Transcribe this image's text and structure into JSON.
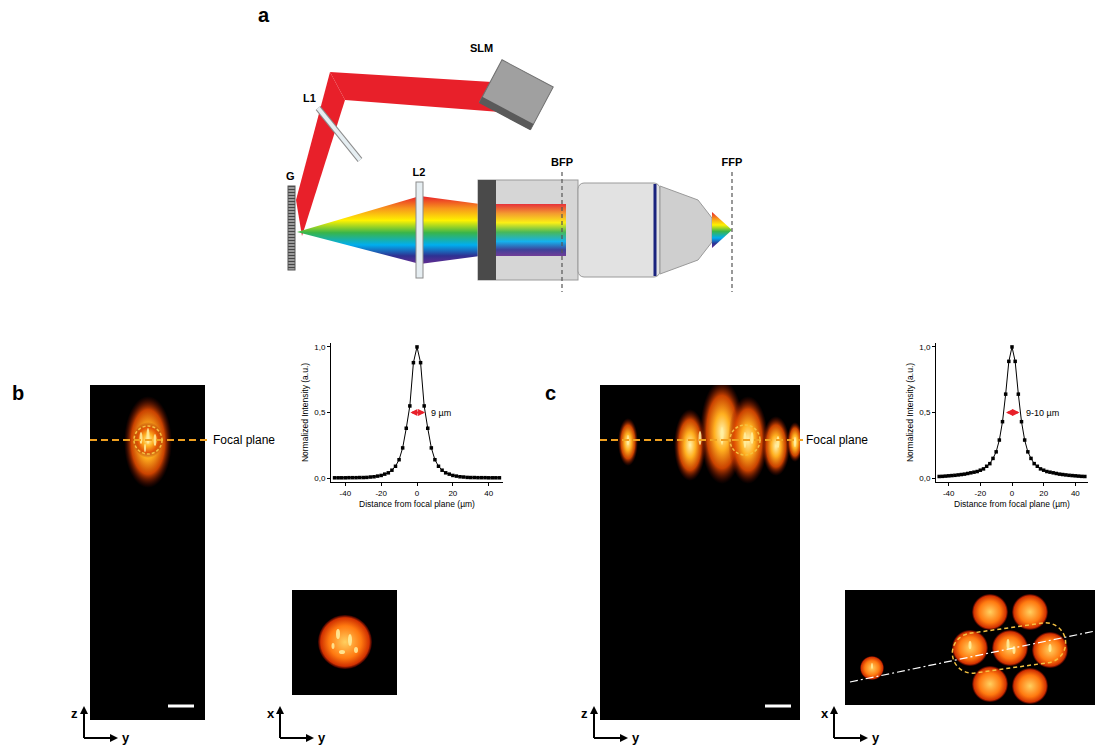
{
  "panels": {
    "a": {
      "label": "a",
      "components": [
        "SLM",
        "L1",
        "G",
        "L2",
        "BFP",
        "FFP"
      ]
    },
    "b": {
      "label": "b",
      "focal_plane_label": "Focal plane",
      "zy_axes": [
        "z",
        "y"
      ],
      "xy_axes": [
        "x",
        "y"
      ]
    },
    "c": {
      "label": "c",
      "focal_plane_label": "Focal plane",
      "zy_axes": [
        "z",
        "y"
      ],
      "xy_axes": [
        "x",
        "y"
      ]
    }
  },
  "chart_data": [
    {
      "type": "line",
      "x_label": "Distance from focal plane (µm)",
      "y_label": "Normalized Intensity (a.u.)",
      "x": [
        -46,
        -44,
        -42,
        -40,
        -38,
        -36,
        -34,
        -32,
        -30,
        -28,
        -26,
        -24,
        -22,
        -20,
        -18,
        -16,
        -14,
        -12,
        -10,
        -8,
        -6,
        -4,
        -2,
        0,
        2,
        4,
        6,
        8,
        10,
        12,
        14,
        16,
        18,
        20,
        22,
        24,
        26,
        28,
        30,
        32,
        34,
        36,
        38,
        40,
        42,
        44,
        46
      ],
      "series": [
        {
          "color": "#000000",
          "marker": "square",
          "line_style": "solid",
          "values": [
            0.002,
            0.002,
            0.002,
            0.002,
            0.003,
            0.003,
            0.003,
            0.004,
            0.004,
            0.005,
            0.008,
            0.01,
            0.015,
            0.02,
            0.03,
            0.04,
            0.06,
            0.09,
            0.14,
            0.23,
            0.38,
            0.55,
            0.88,
            1.0,
            0.88,
            0.55,
            0.38,
            0.23,
            0.14,
            0.09,
            0.06,
            0.04,
            0.03,
            0.02,
            0.015,
            0.01,
            0.008,
            0.005,
            0.004,
            0.004,
            0.003,
            0.003,
            0.003,
            0.002,
            0.002,
            0.002,
            0.002
          ]
        }
      ],
      "xlim": [
        -48,
        48
      ],
      "xticks": [
        -40,
        -20,
        0,
        20,
        40
      ],
      "ylim": [
        -0.03,
        1.03
      ],
      "yticks": [
        {
          "value": 0,
          "label": "0,0"
        },
        {
          "value": 0.5,
          "label": "0,5"
        },
        {
          "value": 1,
          "label": "1,0"
        }
      ],
      "grid": false,
      "annotations": [
        {
          "text": "9 µm",
          "from": -4.5,
          "to": 4.5,
          "y": 0.5,
          "color": "#e8202a"
        }
      ]
    },
    {
      "type": "line",
      "x_label": "Distance from focal plane (µm)",
      "y_label": "Normalized Intensity (a.u.)",
      "x": [
        -46,
        -44,
        -42,
        -40,
        -38,
        -36,
        -34,
        -32,
        -30,
        -28,
        -26,
        -24,
        -22,
        -20,
        -18,
        -16,
        -14,
        -12,
        -10,
        -8,
        -6,
        -4,
        -2,
        0,
        2,
        4,
        6,
        8,
        10,
        12,
        14,
        16,
        18,
        20,
        22,
        24,
        26,
        28,
        30,
        32,
        34,
        36,
        38,
        40,
        42,
        44,
        46
      ],
      "series": [
        {
          "color": "#000000",
          "marker": "square",
          "line_style": "solid",
          "values": [
            0.012,
            0.013,
            0.015,
            0.017,
            0.019,
            0.021,
            0.024,
            0.027,
            0.03,
            0.035,
            0.04,
            0.045,
            0.05,
            0.06,
            0.07,
            0.09,
            0.11,
            0.15,
            0.2,
            0.29,
            0.43,
            0.64,
            0.89,
            1.0,
            0.89,
            0.64,
            0.43,
            0.29,
            0.2,
            0.15,
            0.11,
            0.09,
            0.07,
            0.06,
            0.05,
            0.045,
            0.04,
            0.035,
            0.03,
            0.027,
            0.024,
            0.021,
            0.019,
            0.017,
            0.015,
            0.013,
            0.012
          ]
        }
      ],
      "xlim": [
        -48,
        48
      ],
      "xticks": [
        -40,
        -20,
        0,
        20,
        40
      ],
      "ylim": [
        -0.03,
        1.03
      ],
      "yticks": [
        {
          "value": 0,
          "label": "0,0"
        },
        {
          "value": 0.5,
          "label": "0,5"
        },
        {
          "value": 1,
          "label": "1,0"
        }
      ],
      "grid": false,
      "annotations": [
        {
          "text": "9-10 µm",
          "from": -4.75,
          "to": 4.75,
          "y": 0.5,
          "color": "#e8202a"
        }
      ]
    }
  ]
}
